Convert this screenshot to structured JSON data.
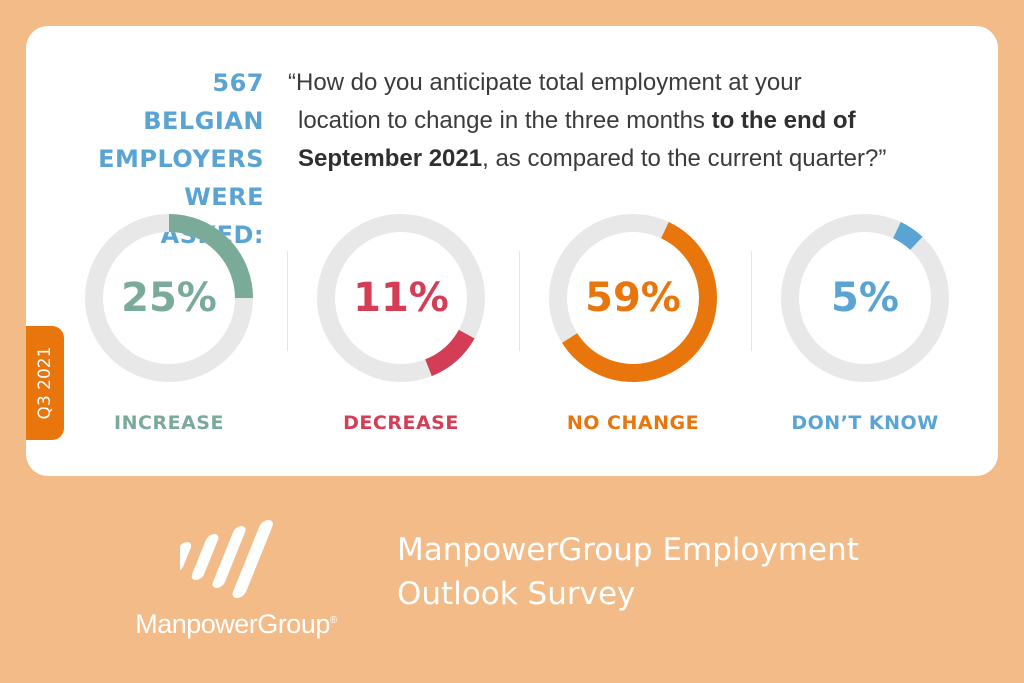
{
  "asked": {
    "line1": "567 BELGIAN",
    "line2": "EMPLOYERS",
    "line3": "WERE ASKED:"
  },
  "question": {
    "line1": "“How do you anticipate total employment at your",
    "line2_normal": "location to change in the three months ",
    "line2_bold": "to the end of",
    "line3_bold": "September 2021",
    "line3_normal": ", as compared to the current quarter?”"
  },
  "quarter_tag": "Q3 2021",
  "colors": {
    "track": "#e8e8e8",
    "increase": "#7aab99",
    "decrease": "#d43d56",
    "no_change": "#e9760c",
    "dont_know": "#5aa4d3",
    "background": "#f3bb87"
  },
  "chart_data": {
    "type": "pie",
    "categories": [
      "INCREASE",
      "DECREASE",
      "NO CHANGE",
      "DON’T KNOW"
    ],
    "values": [
      25,
      11,
      59,
      5
    ],
    "labels": [
      "25%",
      "11%",
      "59%",
      "5%"
    ],
    "title": "",
    "style": "donut"
  },
  "brand": {
    "logo_name": "ManpowerGroup",
    "trademark": "®"
  },
  "survey": {
    "line1": "ManpowerGroup Employment",
    "line2": "Outlook Survey"
  }
}
